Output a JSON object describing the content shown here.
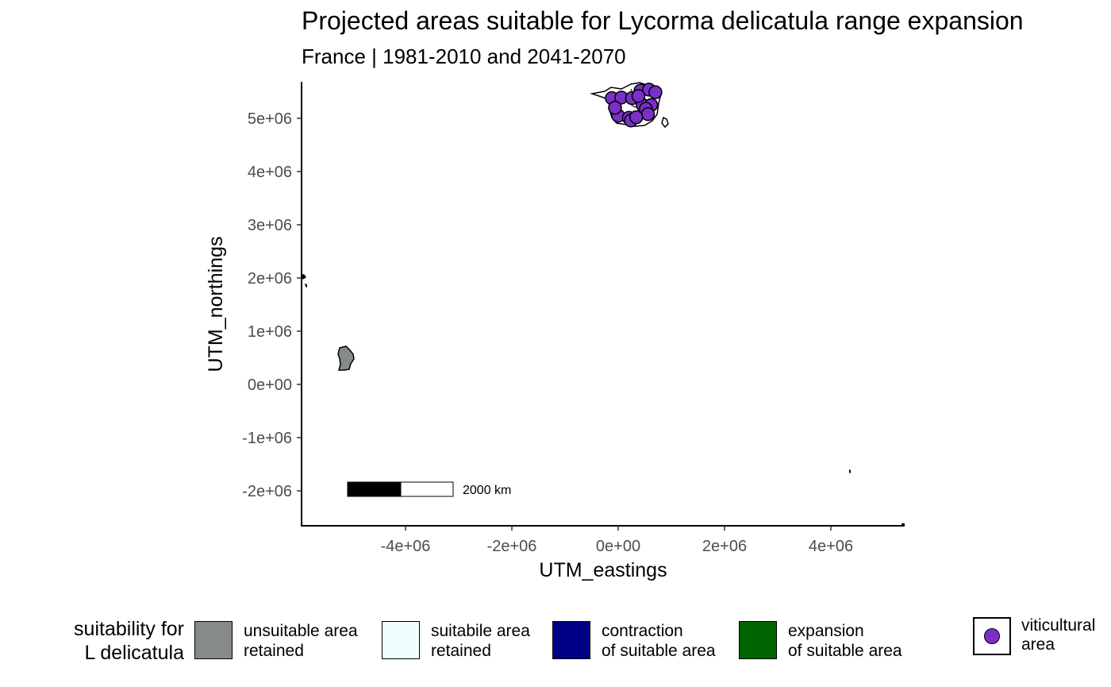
{
  "title": "Projected areas suitable for Lycorma delicatula range expansion",
  "subtitle": "France | 1981-2010 and 2041-2070",
  "map": {
    "x_axis_label": "UTM_eastings",
    "y_axis_label": "UTM_northings",
    "x_ticks": [
      {
        "value": -4000000,
        "label": "-4e+06"
      },
      {
        "value": -2000000,
        "label": "-2e+06"
      },
      {
        "value": 0,
        "label": "0e+00"
      },
      {
        "value": 2000000,
        "label": "2e+06"
      },
      {
        "value": 4000000,
        "label": "4e+06"
      }
    ],
    "y_ticks": [
      {
        "value": 5000000,
        "label": "5e+06"
      },
      {
        "value": 4000000,
        "label": "4e+06"
      },
      {
        "value": 3000000,
        "label": "3e+06"
      },
      {
        "value": 2000000,
        "label": "2e+06"
      },
      {
        "value": 1000000,
        "label": "1e+06"
      },
      {
        "value": 0,
        "label": "0e+00"
      },
      {
        "value": -1000000,
        "label": "-1e+06"
      },
      {
        "value": -2000000,
        "label": "-2e+06"
      }
    ],
    "scale_bar_label": "2000 km",
    "viticultural_points_color": "#7b2fc9",
    "viticultural_points": [
      {
        "e": -120000,
        "n": 5380000
      },
      {
        "e": 60000,
        "n": 5390000
      },
      {
        "e": 260000,
        "n": 5380000
      },
      {
        "e": 420000,
        "n": 5520000
      },
      {
        "e": 580000,
        "n": 5540000
      },
      {
        "e": 700000,
        "n": 5490000
      },
      {
        "e": 460000,
        "n": 5250000
      },
      {
        "e": 620000,
        "n": 5250000
      },
      {
        "e": 520000,
        "n": 5180000
      },
      {
        "e": 560000,
        "n": 5080000
      },
      {
        "e": 0,
        "n": 5050000
      },
      {
        "e": 200000,
        "n": 5010000
      },
      {
        "e": 240000,
        "n": 4960000
      },
      {
        "e": 340000,
        "n": 5020000
      },
      {
        "e": -60000,
        "n": 5200000
      },
      {
        "e": 380000,
        "n": 5420000
      }
    ]
  },
  "legend": {
    "suitability_title": "suitability for\nL delicatula",
    "items": [
      {
        "label": "unsuitable area\nretained",
        "color": "#868a89"
      },
      {
        "label": "suitabile area\nretained",
        "color": "#f0fdff"
      },
      {
        "label": "contraction\nof suitable area",
        "color": "#000087"
      },
      {
        "label": "expansion\nof suitable area",
        "color": "#006400"
      }
    ],
    "viticultural_label": "viticultural\narea",
    "viticultural_color": "#7b2fc9"
  }
}
